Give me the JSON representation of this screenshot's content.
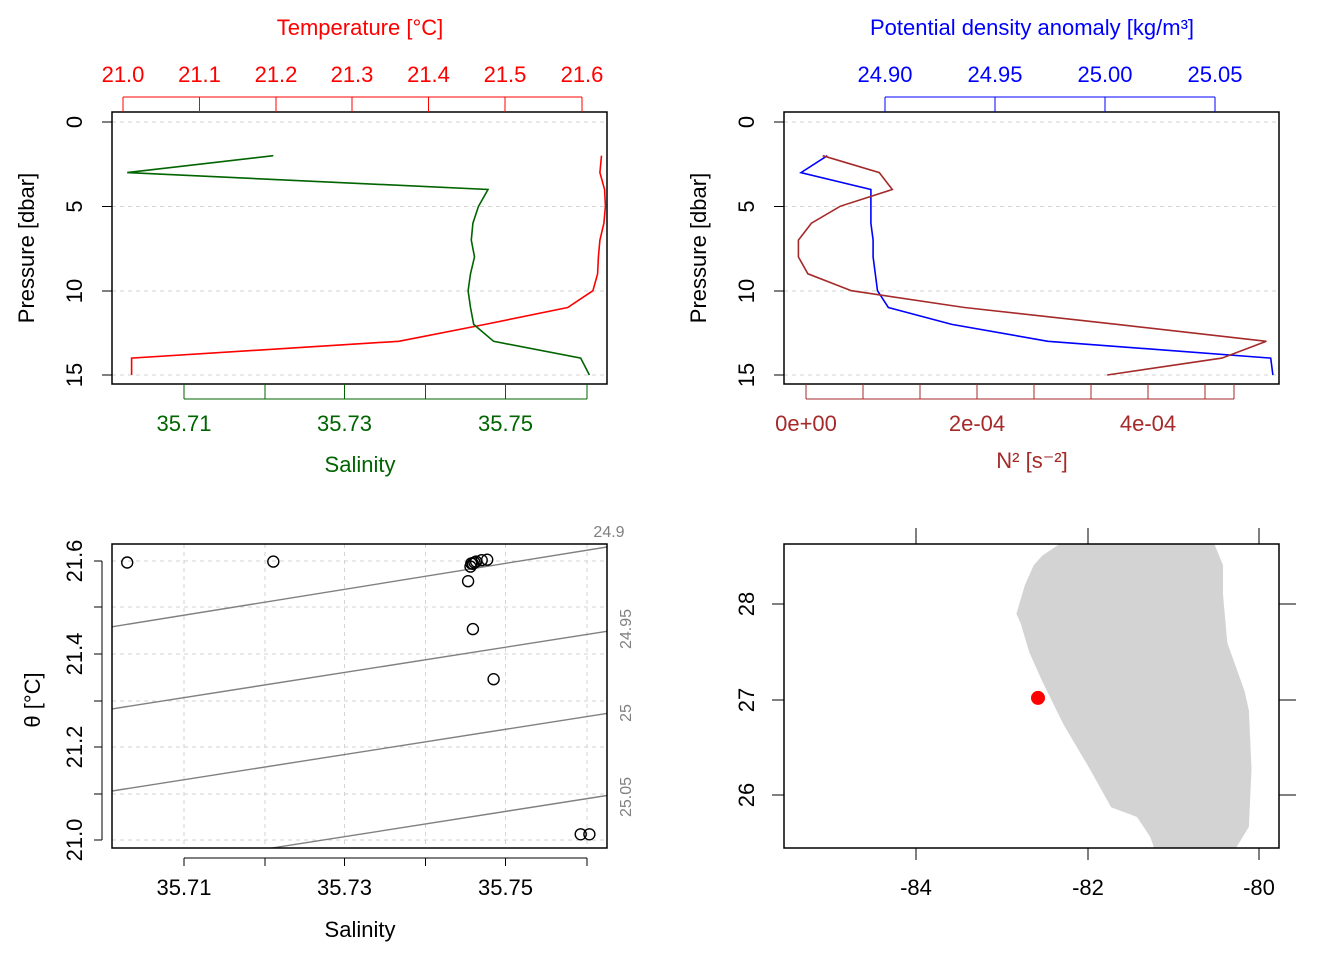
{
  "colors": {
    "temperature": "#ff0000",
    "salinity": "#006400",
    "density": "#0000ff",
    "n2": "#a52a2a",
    "isopycnal": "#808080",
    "grid": "#d3d3d3",
    "land": "#d3d3d3",
    "station": "#ff0000"
  },
  "chart_data": [
    {
      "type": "line",
      "panel": "profile-temperature-salinity",
      "top_axis_label": "Temperature [°C]",
      "bottom_axis_label": "Salinity",
      "ylabel": "Pressure [dbar]",
      "ylim": [
        15,
        0
      ],
      "y_ticks": [
        "0",
        "5",
        "10",
        "15"
      ],
      "top_ticks": [
        "21.0",
        "21.1",
        "21.2",
        "21.3",
        "21.4",
        "21.5",
        "21.6"
      ],
      "top_range": [
        20.985,
        21.615
      ],
      "bottom_ticks": [
        "35.71",
        "35.73",
        "35.75"
      ],
      "bottom_range": [
        35.7005,
        35.7625
      ],
      "grid": "horizontal-dashed",
      "series": [
        {
          "axis": "top",
          "pressure": [
            2,
            3,
            4,
            5,
            6,
            7,
            8,
            9,
            10,
            11,
            12,
            13,
            14,
            15
          ],
          "values": [
            21.608,
            21.606,
            21.612,
            21.613,
            21.611,
            21.606,
            21.604,
            21.603,
            21.597,
            21.565,
            21.46,
            21.35,
            21.01,
            21.01
          ]
        },
        {
          "axis": "bottom",
          "pressure": [
            2,
            3,
            4,
            5,
            6,
            7,
            8,
            9,
            10,
            11,
            12,
            13,
            14,
            15
          ],
          "values": [
            35.7207,
            35.7024,
            35.7476,
            35.7464,
            35.7457,
            35.7455,
            35.7459,
            35.7454,
            35.7451,
            35.7454,
            35.7458,
            35.7483,
            35.7592,
            35.7603
          ]
        }
      ]
    },
    {
      "type": "line",
      "panel": "profile-density-n2",
      "top_axis_label": "Potential density anomaly [kg/m³]",
      "bottom_axis_label": "N² [s⁻²]",
      "ylabel": "Pressure [dbar]",
      "ylim": [
        15,
        0
      ],
      "y_ticks": [
        "0",
        "5",
        "10",
        "15"
      ],
      "top_ticks": [
        "24.90",
        "24.95",
        "25.00",
        "25.05"
      ],
      "top_range": [
        24.8452,
        25.0718
      ],
      "bottom_ticks": [
        "0e+00",
        "2e-04",
        "4e-04"
      ],
      "bottom_range": [
        -1.95e-05,
        0.0005495
      ],
      "grid": "horizontal-dashed",
      "series": [
        {
          "axis": "top",
          "pressure": [
            2,
            3,
            4,
            5,
            6,
            7,
            8,
            9,
            10,
            11,
            12,
            13,
            14,
            15
          ],
          "values": [
            24.865,
            24.853,
            24.885,
            24.885,
            24.885,
            24.886,
            24.886,
            24.887,
            24.888,
            24.893,
            24.922,
            24.966,
            25.068,
            25.069
          ]
        },
        {
          "axis": "bottom",
          "pressure": [
            2,
            3,
            4,
            5,
            6,
            7,
            8,
            9,
            10,
            11,
            12,
            13,
            14,
            15
          ],
          "values": [
            2.5e-05,
            9e-05,
            0.000105,
            4.5e-05,
            1.2e-05,
            -3e-06,
            -3e-06,
            8e-06,
            5.8e-05,
            0.000188,
            0.000364,
            0.000535,
            0.000484,
            0.000352
          ]
        }
      ]
    },
    {
      "type": "scatter",
      "panel": "ts-diagram",
      "xlabel": "Salinity",
      "ylabel": "θ [°C]",
      "xlim": [
        35.7005,
        35.7625
      ],
      "ylim": [
        20.9975,
        21.6465
      ],
      "x_ticks": [
        "35.71",
        "35.73",
        "35.75"
      ],
      "y_ticks": [
        "21.0",
        "21.2",
        "21.4",
        "21.6"
      ],
      "grid": "dashed",
      "points": {
        "x": [
          35.7024,
          35.7207,
          35.7454,
          35.7455,
          35.7457,
          35.7459,
          35.7461,
          35.7468,
          35.7475,
          35.7451,
          35.7457,
          35.7483,
          35.7592,
          35.7603
        ],
        "y": [
          21.606,
          21.608,
          21.597,
          21.604,
          21.603,
          21.606,
          21.608,
          21.611,
          21.612,
          21.565,
          21.46,
          21.35,
          21.01,
          21.01
        ]
      },
      "isopycnal_labels": [
        "24.9",
        "24.95",
        "25",
        "25.05"
      ],
      "isopycnals": [
        {
          "label": "24.9",
          "y_left": 21.465,
          "y_right": 21.64
        },
        {
          "label": "24.95",
          "y_left": 21.285,
          "y_right": 21.455
        },
        {
          "label": "25",
          "y_left": 21.105,
          "y_right": 21.275
        },
        {
          "label": "25.05",
          "y_left": 20.925,
          "y_right": 21.095
        }
      ]
    },
    {
      "type": "map",
      "panel": "station-map",
      "x_ticks": [
        "-84",
        "-82",
        "-80"
      ],
      "y_ticks": [
        "26",
        "27",
        "28"
      ],
      "lon_range": [
        -85.55,
        -79.8
      ],
      "lat_range": [
        25.48,
        28.62
      ],
      "station": {
        "lon": -82.6,
        "lat": 27.03
      },
      "land_polygon_lonlat": [
        [
          -82.35,
          28.62
        ],
        [
          -80.55,
          28.62
        ],
        [
          -80.45,
          28.4
        ],
        [
          -80.45,
          28.1
        ],
        [
          -80.4,
          27.6
        ],
        [
          -80.2,
          27.1
        ],
        [
          -80.15,
          26.9
        ],
        [
          -80.12,
          26.3
        ],
        [
          -80.15,
          25.7
        ],
        [
          -80.3,
          25.48
        ],
        [
          -81.25,
          25.48
        ],
        [
          -81.3,
          25.6
        ],
        [
          -81.45,
          25.8
        ],
        [
          -81.75,
          25.9
        ],
        [
          -82.0,
          26.3
        ],
        [
          -82.3,
          26.75
        ],
        [
          -82.55,
          27.2
        ],
        [
          -82.7,
          27.5
        ],
        [
          -82.8,
          27.8
        ],
        [
          -82.85,
          27.9
        ],
        [
          -82.75,
          28.2
        ],
        [
          -82.65,
          28.4
        ],
        [
          -82.55,
          28.5
        ]
      ]
    }
  ]
}
